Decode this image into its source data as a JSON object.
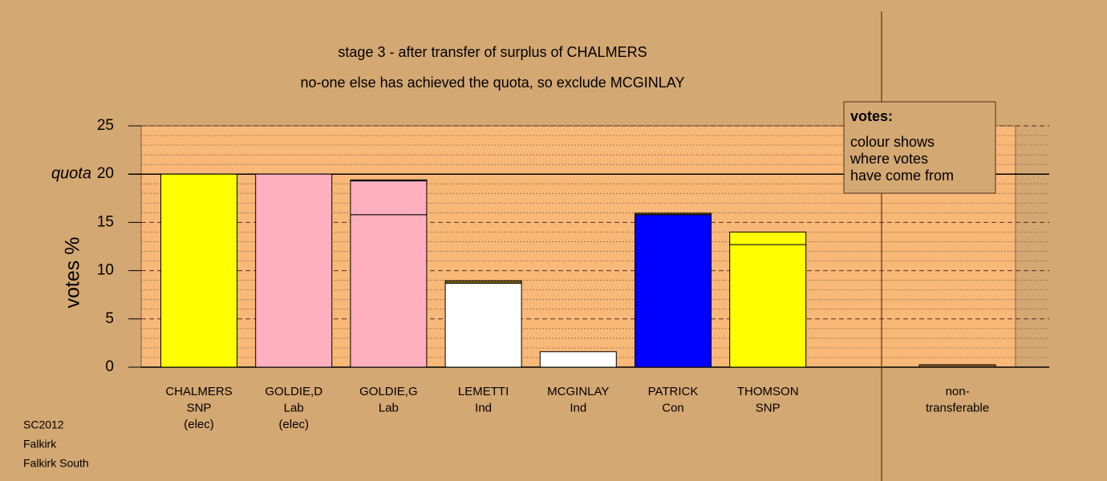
{
  "chart_data": {
    "type": "stacked-bar",
    "title": "stage 3 - after transfer of surplus of CHALMERS",
    "subtitle": "no-one else has achieved the quota, so exclude MCGINLAY",
    "y_label": "votes %",
    "categories": [
      [
        "CHALMERS",
        "SNP",
        "(elec)"
      ],
      [
        "GOLDIE,D",
        "Lab",
        "(elec)"
      ],
      [
        "GOLDIE,G",
        "Lab"
      ],
      [
        "LEMETTI",
        "Ind"
      ],
      [
        "MCGINLAY",
        "Ind"
      ],
      [
        "PATRICK",
        "Con"
      ],
      [
        "THOMSON",
        "SNP"
      ],
      null,
      [
        "non-",
        "transferable"
      ]
    ],
    "series": [
      {
        "values": [
          20,
          20,
          15.8,
          8.7,
          1.6,
          15.8,
          12.7,
          null,
          0
        ],
        "colors": [
          "#ffff00",
          "#ffb0c0",
          "#ffb0c0",
          "#ffffff",
          "#ffffff",
          "#0000ff",
          "#ffff00",
          null,
          "#8b5a2b"
        ]
      },
      {
        "values": [
          0,
          0,
          3.5,
          0,
          0,
          0,
          0,
          null,
          0
        ],
        "colors": [
          "#ffb0c0",
          "#ffb0c0",
          "#ffb0c0",
          "#ffb0c0",
          "#ffb0c0",
          "#ffb0c0",
          "#ffb0c0",
          null,
          "#ffb0c0"
        ]
      },
      {
        "values": [
          0,
          0,
          0.1,
          0.25,
          0,
          0.15,
          1.3,
          null,
          0.25
        ],
        "colors": [
          "#ffff00",
          "#ffff00",
          "#8b6914",
          "#8b6914",
          "#ffff00",
          "#8b6914",
          "#ffff00",
          null,
          "#8b5a2b"
        ]
      }
    ],
    "ylim": [
      0,
      25
    ],
    "yticks": [
      0,
      5,
      10,
      15,
      20,
      25
    ],
    "quota": 20,
    "quota_label": "quota",
    "legend": {
      "title": "votes:",
      "lines": [
        "colour shows",
        "where votes",
        "have come from"
      ]
    },
    "footer": [
      "SC2012",
      "Falkirk",
      "Falkirk South"
    ],
    "grid": true
  }
}
